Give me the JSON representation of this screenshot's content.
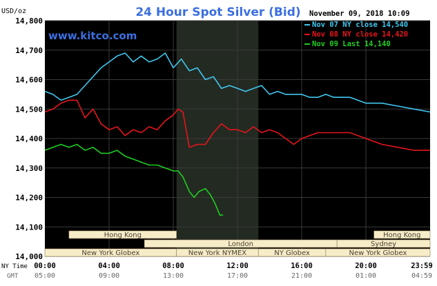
{
  "colors": {
    "background": "#ffffff",
    "plot": "#000000",
    "grid": "#3a3a3a",
    "nymex_shade": "#232a22",
    "title": "#3b6fe0",
    "frame_text": "#000000",
    "session_bar": "#f6ecc8",
    "session_text": "#4a4030",
    "legend_text": "#ffffff",
    "gmt_text": "#666666"
  },
  "chart_data": {
    "type": "line",
    "title": "24 Hour Spot Silver (Bid)",
    "watermark": "www.kitco.com",
    "timestamp": "November 09, 2018 10:09",
    "y_unit": "USD/oz",
    "ylim": [
      14.0,
      14.8
    ],
    "yticks": [
      "14,800",
      "14,700",
      "14,600",
      "14,500",
      "14,400",
      "14,300",
      "14,200",
      "14,100",
      "14,000"
    ],
    "xlim": [
      0,
      24
    ],
    "x_row_label": "NY Time",
    "xticks": [
      "00:00",
      "04:00",
      "08:00",
      "12:00",
      "16:00",
      "20:00",
      "23:59"
    ],
    "gmt_row_label": "GMT",
    "gmt_ticks": [
      "05:00",
      "09:00",
      "13:00",
      "17:00",
      "21:00",
      "01:00",
      "04:59"
    ],
    "shaded_span": [
      8.2,
      13.3
    ],
    "grid": true,
    "legend_position": "top-right",
    "sessions": [
      {
        "label": "Hong Kong",
        "start": 1.5,
        "end": 8.2,
        "row": 0
      },
      {
        "label": "Hong Kong",
        "start": 20.5,
        "end": 24,
        "row": 0
      },
      {
        "label": "London",
        "start": 6.2,
        "end": 18.2,
        "row": 1
      },
      {
        "label": "Sydney",
        "start": 18.2,
        "end": 24,
        "row": 1
      },
      {
        "label": "New York Globex",
        "start": 0,
        "end": 8.2,
        "row": 2
      },
      {
        "label": "New York NYMEX",
        "start": 8.2,
        "end": 13.3,
        "row": 2
      },
      {
        "label": "NY Globex",
        "start": 13.3,
        "end": 17.5,
        "row": 2
      },
      {
        "label": "New York Globex",
        "start": 17.5,
        "end": 24,
        "row": 2
      }
    ],
    "series": [
      {
        "name": "Nov 07 NY close 14,540",
        "color": "#40c8f0",
        "points": [
          [
            0,
            14.56
          ],
          [
            0.5,
            14.55
          ],
          [
            1,
            14.53
          ],
          [
            1.5,
            14.54
          ],
          [
            2,
            14.55
          ],
          [
            2.5,
            14.58
          ],
          [
            3,
            14.61
          ],
          [
            3.5,
            14.64
          ],
          [
            4,
            14.66
          ],
          [
            4.5,
            14.68
          ],
          [
            5,
            14.69
          ],
          [
            5.5,
            14.66
          ],
          [
            6,
            14.68
          ],
          [
            6.5,
            14.66
          ],
          [
            7,
            14.67
          ],
          [
            7.5,
            14.69
          ],
          [
            8,
            14.64
          ],
          [
            8.5,
            14.67
          ],
          [
            9,
            14.63
          ],
          [
            9.5,
            14.64
          ],
          [
            10,
            14.6
          ],
          [
            10.5,
            14.61
          ],
          [
            11,
            14.57
          ],
          [
            11.5,
            14.58
          ],
          [
            12,
            14.57
          ],
          [
            12.5,
            14.56
          ],
          [
            13,
            14.57
          ],
          [
            13.5,
            14.58
          ],
          [
            14,
            14.55
          ],
          [
            14.5,
            14.56
          ],
          [
            15,
            14.55
          ],
          [
            16,
            14.55
          ],
          [
            16.5,
            14.54
          ],
          [
            17,
            14.54
          ],
          [
            17.5,
            14.55
          ],
          [
            18,
            14.54
          ],
          [
            19,
            14.54
          ],
          [
            19.5,
            14.53
          ],
          [
            20,
            14.52
          ],
          [
            21,
            14.52
          ],
          [
            22,
            14.51
          ],
          [
            23,
            14.5
          ],
          [
            24,
            14.49
          ]
        ]
      },
      {
        "name": "Nov 08 NY close 14,420",
        "color": "#e8151b",
        "points": [
          [
            0,
            14.49
          ],
          [
            0.5,
            14.5
          ],
          [
            1,
            14.52
          ],
          [
            1.5,
            14.53
          ],
          [
            2,
            14.53
          ],
          [
            2.5,
            14.47
          ],
          [
            3,
            14.5
          ],
          [
            3.5,
            14.45
          ],
          [
            4,
            14.43
          ],
          [
            4.5,
            14.44
          ],
          [
            5,
            14.41
          ],
          [
            5.5,
            14.43
          ],
          [
            6,
            14.42
          ],
          [
            6.5,
            14.44
          ],
          [
            7,
            14.43
          ],
          [
            7.5,
            14.46
          ],
          [
            8,
            14.48
          ],
          [
            8.3,
            14.5
          ],
          [
            8.6,
            14.49
          ],
          [
            9,
            14.37
          ],
          [
            9.5,
            14.38
          ],
          [
            10,
            14.38
          ],
          [
            10.5,
            14.42
          ],
          [
            11,
            14.45
          ],
          [
            11.5,
            14.43
          ],
          [
            12,
            14.43
          ],
          [
            12.5,
            14.42
          ],
          [
            13,
            14.44
          ],
          [
            13.5,
            14.42
          ],
          [
            14,
            14.43
          ],
          [
            14.5,
            14.42
          ],
          [
            15,
            14.4
          ],
          [
            15.5,
            14.38
          ],
          [
            16,
            14.4
          ],
          [
            16.5,
            14.41
          ],
          [
            17,
            14.42
          ],
          [
            18,
            14.42
          ],
          [
            19,
            14.42
          ],
          [
            19.5,
            14.41
          ],
          [
            20,
            14.4
          ],
          [
            21,
            14.38
          ],
          [
            22,
            14.37
          ],
          [
            23,
            14.36
          ],
          [
            24,
            14.36
          ]
        ]
      },
      {
        "name": "Nov 09 Last 14,140",
        "color": "#20d020",
        "points": [
          [
            0,
            14.36
          ],
          [
            0.5,
            14.37
          ],
          [
            1,
            14.38
          ],
          [
            1.5,
            14.37
          ],
          [
            2,
            14.38
          ],
          [
            2.5,
            14.36
          ],
          [
            3,
            14.37
          ],
          [
            3.5,
            14.35
          ],
          [
            4,
            14.35
          ],
          [
            4.5,
            14.36
          ],
          [
            5,
            14.34
          ],
          [
            5.5,
            14.33
          ],
          [
            6,
            14.32
          ],
          [
            6.5,
            14.31
          ],
          [
            7,
            14.31
          ],
          [
            7.5,
            14.3
          ],
          [
            8,
            14.29
          ],
          [
            8.3,
            14.29
          ],
          [
            8.6,
            14.27
          ],
          [
            9,
            14.22
          ],
          [
            9.3,
            14.2
          ],
          [
            9.6,
            14.22
          ],
          [
            10,
            14.23
          ],
          [
            10.3,
            14.21
          ],
          [
            10.6,
            14.18
          ],
          [
            10.9,
            14.14
          ],
          [
            11.1,
            14.14
          ]
        ]
      }
    ]
  }
}
